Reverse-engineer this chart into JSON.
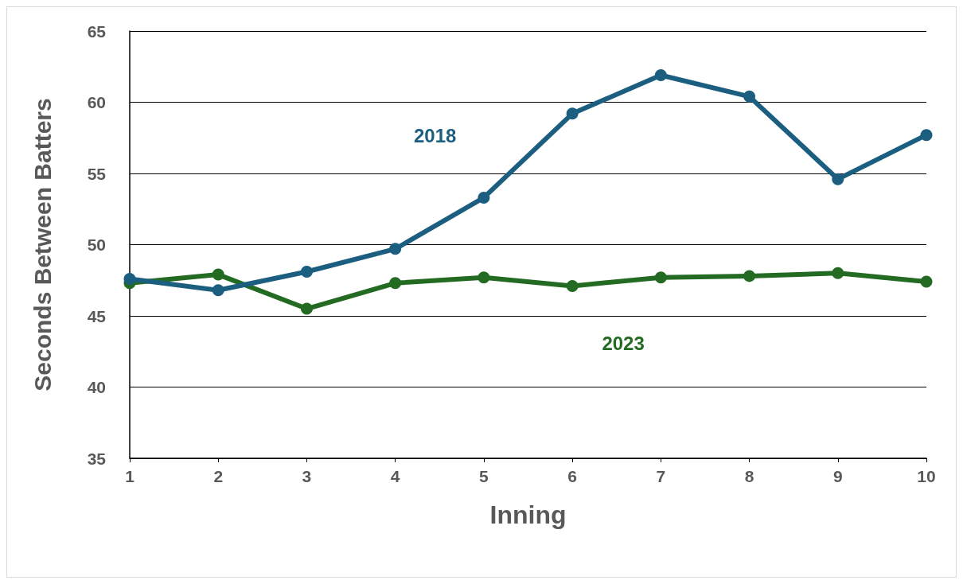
{
  "chart_data": {
    "type": "line",
    "xlabel": "Inning",
    "ylabel": "Seconds Between Batters",
    "x": [
      1,
      2,
      3,
      4,
      5,
      6,
      7,
      8,
      9,
      10
    ],
    "series": [
      {
        "name": "2018",
        "color": "#1b5e80",
        "values": [
          47.6,
          46.8,
          48.1,
          49.7,
          53.3,
          59.2,
          61.9,
          60.4,
          54.6,
          57.7
        ]
      },
      {
        "name": "2023",
        "color": "#236b22",
        "values": [
          47.3,
          47.9,
          45.5,
          47.3,
          47.7,
          47.1,
          47.7,
          47.8,
          48.0,
          47.4
        ]
      }
    ],
    "xlim": [
      1,
      10
    ],
    "xticks": [
      1,
      2,
      3,
      4,
      5,
      6,
      7,
      8,
      9,
      10
    ],
    "ylim": [
      35,
      65
    ],
    "yticks": [
      35,
      40,
      45,
      50,
      55,
      60,
      65
    ],
    "grid": "y",
    "legend": false,
    "marker": "circle",
    "line_style": "solid"
  }
}
